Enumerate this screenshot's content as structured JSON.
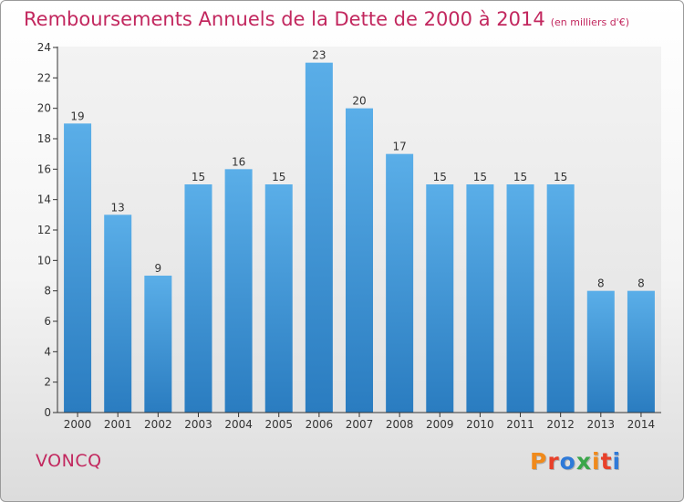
{
  "header": {
    "title": "Remboursements Annuels de la Dette de 2000 à 2014",
    "unit": "(en milliers d'€)"
  },
  "footer": {
    "town": "VONCQ",
    "logo_text": "Proxiti",
    "logo_colors": [
      "#f08a1c",
      "#e8402a",
      "#2f7ad8",
      "#3aa64a",
      "#f08a1c",
      "#e8402a",
      "#2f7ad8"
    ]
  },
  "chart_data": {
    "type": "bar",
    "title": "Remboursements Annuels de la Dette de 2000 à 2014",
    "subtitle": "(en milliers d'€)",
    "categories": [
      "2000",
      "2001",
      "2002",
      "2003",
      "2004",
      "2005",
      "2006",
      "2007",
      "2008",
      "2009",
      "2010",
      "2011",
      "2012",
      "2013",
      "2014"
    ],
    "values": [
      19,
      13,
      9,
      15,
      16,
      15,
      23,
      20,
      17,
      15,
      15,
      15,
      15,
      8,
      8
    ],
    "ylim": [
      0,
      24
    ],
    "yticks": [
      0,
      2,
      4,
      6,
      8,
      10,
      12,
      14,
      16,
      18,
      20,
      22,
      24
    ],
    "xlabel": "",
    "ylabel": "",
    "grid": false,
    "bar_color_top": "#5aaee8",
    "bar_color_bottom": "#2a7cc0"
  }
}
